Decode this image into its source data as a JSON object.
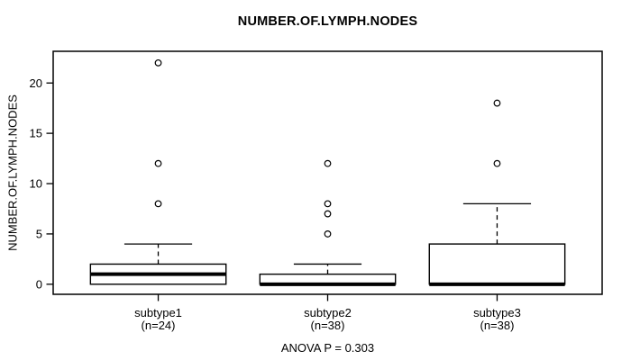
{
  "chart_data": {
    "type": "boxplot",
    "title": "NUMBER.OF.LYMPH.NODES",
    "ylabel": "NUMBER.OF.LYMPH.NODES",
    "xlabel": "",
    "annotation": "ANOVA P = 0.303",
    "yticks": [
      0,
      5,
      10,
      15,
      20
    ],
    "ylim": [
      -1,
      23.15
    ],
    "grid": false,
    "legend": "none",
    "groups": [
      {
        "label": "subtype1",
        "sublabel": "(n=24)",
        "n": 24,
        "q1": 0,
        "median": 1,
        "q3": 2,
        "whisker_low": 0,
        "whisker_high": 4,
        "outliers": [
          8,
          12,
          22
        ]
      },
      {
        "label": "subtype2",
        "sublabel": "(n=38)",
        "n": 38,
        "q1": 0,
        "median": 0,
        "q3": 1,
        "whisker_low": 0,
        "whisker_high": 2,
        "outliers": [
          5,
          7,
          8,
          12
        ]
      },
      {
        "label": "subtype3",
        "sublabel": "(n=38)",
        "n": 38,
        "q1": 0,
        "median": 0,
        "q3": 4,
        "whisker_low": 0,
        "whisker_high": 8,
        "outliers": [
          12,
          18
        ]
      }
    ]
  },
  "colors": {
    "line": "#000000",
    "box_fill": "#ffffff",
    "background": "#ffffff"
  }
}
